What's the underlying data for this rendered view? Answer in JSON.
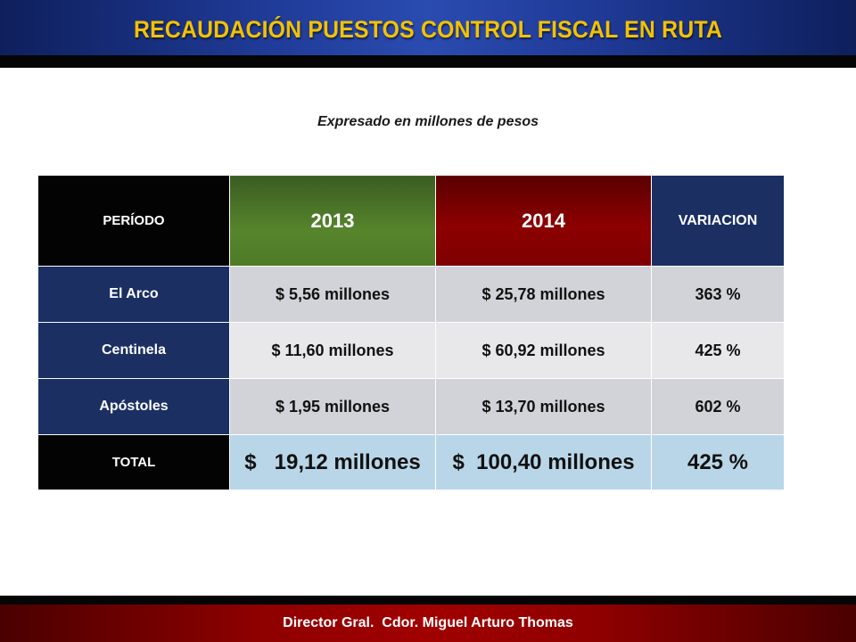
{
  "header": {
    "title": "RECAUDACIÓN PUESTOS CONTROL FISCAL EN RUTA",
    "title_color": "#f2c200"
  },
  "subtitle": "Expresado en millones de pesos",
  "table": {
    "columns": [
      "PERÍODO",
      "2013",
      "2014",
      "VARIACION"
    ],
    "rows": [
      {
        "label": "El Arco",
        "v2013": "$ 5,56 millones",
        "v2014": "$ 25,78 millones",
        "variation": "363 %"
      },
      {
        "label": "Centinela",
        "v2013": "$ 11,60 millones",
        "v2014": "$ 60,92 millones",
        "variation": "425 %"
      },
      {
        "label": "Apóstoles",
        "v2013": "$ 1,95 millones",
        "v2014": "$  13,70 millones",
        "variation": "602 %"
      }
    ],
    "total": {
      "label": "TOTAL",
      "v2013": "$   19,12 millones",
      "v2014": "$  100,40 millones",
      "variation": "425 %"
    }
  },
  "colors": {
    "header_blue": "#1f3a96",
    "green_2013": "#56852c",
    "red_2014": "#8c0000",
    "navy": "#1b2f63",
    "total_blue": "#b8d6e8",
    "footer_red": "#a00000"
  },
  "footer": {
    "text": "Director Gral.  Cdor. Miguel Arturo Thomas"
  }
}
